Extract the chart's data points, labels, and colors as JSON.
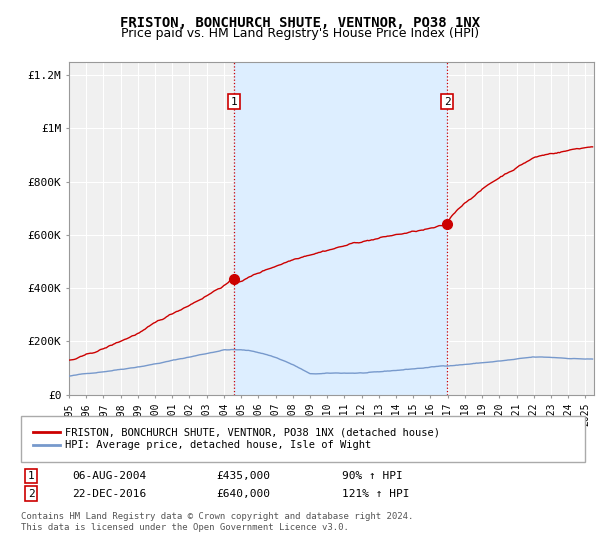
{
  "title": "FRISTON, BONCHURCH SHUTE, VENTNOR, PO38 1NX",
  "subtitle": "Price paid vs. HM Land Registry's House Price Index (HPI)",
  "title_fontsize": 10,
  "subtitle_fontsize": 9,
  "ylim": [
    0,
    1250000
  ],
  "yticks": [
    0,
    200000,
    400000,
    600000,
    800000,
    1000000,
    1200000
  ],
  "ytick_labels": [
    "£0",
    "£200K",
    "£400K",
    "£600K",
    "£800K",
    "£1M",
    "£1.2M"
  ],
  "xlim_start": 1995.0,
  "xlim_end": 2025.5,
  "xtick_years": [
    1995,
    1996,
    1997,
    1998,
    1999,
    2000,
    2001,
    2002,
    2003,
    2004,
    2005,
    2006,
    2007,
    2008,
    2009,
    2010,
    2011,
    2012,
    2013,
    2014,
    2015,
    2016,
    2017,
    2018,
    2019,
    2020,
    2021,
    2022,
    2023,
    2024,
    2025
  ],
  "background_color": "#ffffff",
  "plot_bg_color": "#f0f0f0",
  "grid_color": "#ffffff",
  "shading_color": "#ddeeff",
  "red_color": "#cc0000",
  "blue_color": "#7799cc",
  "sale1_x": 2004.6,
  "sale1_y": 435000,
  "sale2_x": 2016.97,
  "sale2_y": 640000,
  "vline_color": "#cc0000",
  "vline_style": ":",
  "legend_label_red": "FRISTON, BONCHURCH SHUTE, VENTNOR, PO38 1NX (detached house)",
  "legend_label_blue": "HPI: Average price, detached house, Isle of Wight",
  "table_row1_num": "1",
  "table_row1_date": "06-AUG-2004",
  "table_row1_price": "£435,000",
  "table_row1_hpi": "90% ↑ HPI",
  "table_row2_num": "2",
  "table_row2_date": "22-DEC-2016",
  "table_row2_price": "£640,000",
  "table_row2_hpi": "121% ↑ HPI",
  "footer": "Contains HM Land Registry data © Crown copyright and database right 2024.\nThis data is licensed under the Open Government Licence v3.0."
}
